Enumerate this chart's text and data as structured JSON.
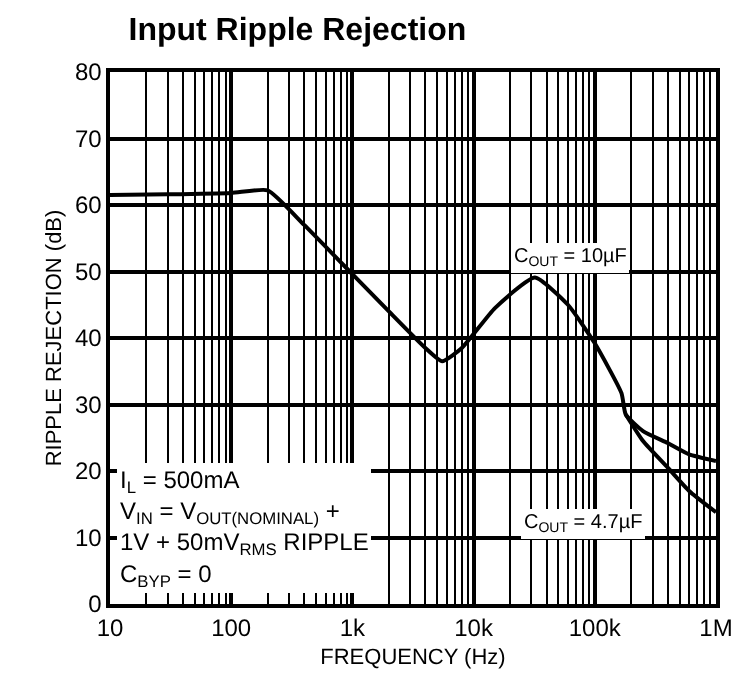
{
  "chart_data": {
    "type": "line",
    "title": "Input Ripple Rejection",
    "xlabel": "FREQUENCY (Hz)",
    "ylabel": "RIPPLE REJECTION (dB)",
    "log": "x",
    "grid": true,
    "legend": false,
    "marker": "none",
    "line_style": "solid",
    "xlim": [
      10,
      1000000
    ],
    "xticks": [
      10,
      100,
      {
        "value": 1000,
        "label": "1k"
      },
      {
        "value": 10000,
        "label": "10k"
      },
      {
        "value": 100000,
        "label": "100k"
      },
      {
        "value": 1000000,
        "label": "1M"
      }
    ],
    "ylim": [
      0,
      80
    ],
    "yticks": [
      0,
      10,
      20,
      30,
      40,
      50,
      60,
      70,
      80
    ],
    "series": [
      {
        "name": "C$_{OUT}$ = 10µF",
        "color": "#000000",
        "x": [
          10,
          30,
          100,
          200,
          400,
          1000,
          2000,
          4000,
          5500,
          8000,
          15000,
          32000,
          60000,
          100000,
          166000,
          180000,
          250000,
          400000,
          600000,
          1000000
        ],
        "values": [
          61.5,
          61.6,
          61.8,
          62.2,
          57.0,
          49.6,
          44.0,
          38.5,
          36.5,
          38.5,
          44.5,
          49.1,
          45.0,
          39.2,
          31.7,
          28.5,
          26.0,
          24.2,
          22.5,
          21.5
        ]
      },
      {
        "name": "C$_{OUT}$ = 4.7µF",
        "color": "#000000",
        "x": [
          180000,
          250000,
          400000,
          600000,
          1000000
        ],
        "values": [
          28.5,
          24.5,
          20.5,
          17.0,
          13.8
        ]
      }
    ],
    "annotations": [
      "I$_{L}$ = 500mA",
      "V$_{IN}$ = V$_{OUT(NOMINAL)}$ +\n1V + 50mV$_{RMS}$ RIPPLE",
      "C$_{BYP}$ = 0"
    ]
  }
}
